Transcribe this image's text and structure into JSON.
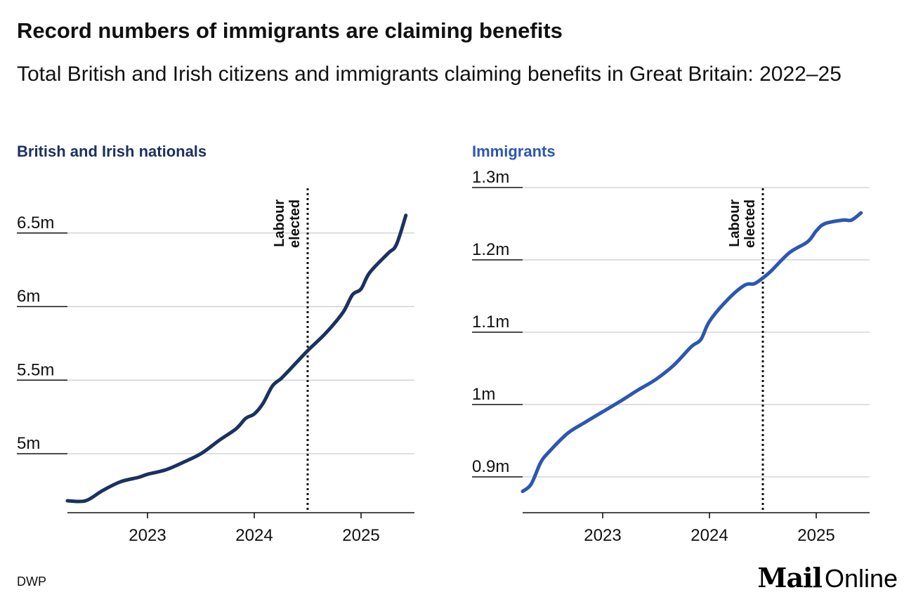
{
  "title": "Record numbers of immigrants are claiming benefits",
  "subtitle": "Total British and Irish citizens and immigrants claiming benefits in Great Britain: 2022–25",
  "source": "DWP",
  "logo": {
    "mail": "Mail",
    "online": "Online"
  },
  "chart_data": [
    {
      "type": "line",
      "series_name": "British and Irish nationals",
      "color": "#1b3160",
      "ylim": [
        4.6,
        6.7
      ],
      "yticks": [
        {
          "value": 5.0,
          "label": "5m"
        },
        {
          "value": 5.5,
          "label": "5.5m"
        },
        {
          "value": 6.0,
          "label": "6m"
        },
        {
          "value": 6.5,
          "label": "6.5m"
        }
      ],
      "xlim": [
        2022.25,
        2025.5
      ],
      "xticks": [
        {
          "value": 2023,
          "label": "2023"
        },
        {
          "value": 2024,
          "label": "2024"
        },
        {
          "value": 2025,
          "label": "2025"
        }
      ],
      "annotation": {
        "x": 2024.5,
        "label_line1": "Labour",
        "label_line2": "elected"
      },
      "x": [
        2022.25,
        2022.42,
        2022.58,
        2022.75,
        2022.92,
        2023.0,
        2023.17,
        2023.33,
        2023.5,
        2023.67,
        2023.83,
        2023.92,
        2024.0,
        2024.08,
        2024.17,
        2024.25,
        2024.33,
        2024.5,
        2024.67,
        2024.83,
        2024.92,
        2025.0,
        2025.08,
        2025.25,
        2025.33,
        2025.42
      ],
      "values": [
        4.68,
        4.68,
        4.75,
        4.81,
        4.84,
        4.86,
        4.89,
        4.94,
        5.0,
        5.09,
        5.17,
        5.24,
        5.27,
        5.34,
        5.46,
        5.51,
        5.57,
        5.7,
        5.82,
        5.96,
        6.08,
        6.12,
        6.23,
        6.36,
        6.42,
        6.62
      ]
    },
    {
      "type": "line",
      "series_name": "Immigrants",
      "color": "#2b57b0",
      "ylim": [
        0.85,
        1.3
      ],
      "yticks": [
        {
          "value": 0.9,
          "label": "0.9m"
        },
        {
          "value": 1.0,
          "label": "1m"
        },
        {
          "value": 1.1,
          "label": "1.1m"
        },
        {
          "value": 1.2,
          "label": "1.2m"
        },
        {
          "value": 1.3,
          "label": "1.3m"
        }
      ],
      "xlim": [
        2022.25,
        2025.5
      ],
      "xticks": [
        {
          "value": 2023,
          "label": "2023"
        },
        {
          "value": 2024,
          "label": "2024"
        },
        {
          "value": 2025,
          "label": "2025"
        }
      ],
      "annotation": {
        "x": 2024.5,
        "label_line1": "Labour",
        "label_line2": "elected"
      },
      "x": [
        2022.25,
        2022.33,
        2022.42,
        2022.5,
        2022.67,
        2022.83,
        2023.0,
        2023.17,
        2023.33,
        2023.5,
        2023.67,
        2023.83,
        2023.92,
        2024.0,
        2024.17,
        2024.33,
        2024.42,
        2024.5,
        2024.58,
        2024.75,
        2024.92,
        2025.0,
        2025.08,
        2025.25,
        2025.33,
        2025.42
      ],
      "values": [
        0.88,
        0.89,
        0.92,
        0.935,
        0.96,
        0.975,
        0.99,
        1.005,
        1.02,
        1.035,
        1.055,
        1.08,
        1.09,
        1.115,
        1.145,
        1.165,
        1.167,
        1.175,
        1.185,
        1.21,
        1.225,
        1.24,
        1.25,
        1.255,
        1.255,
        1.265
      ]
    }
  ]
}
